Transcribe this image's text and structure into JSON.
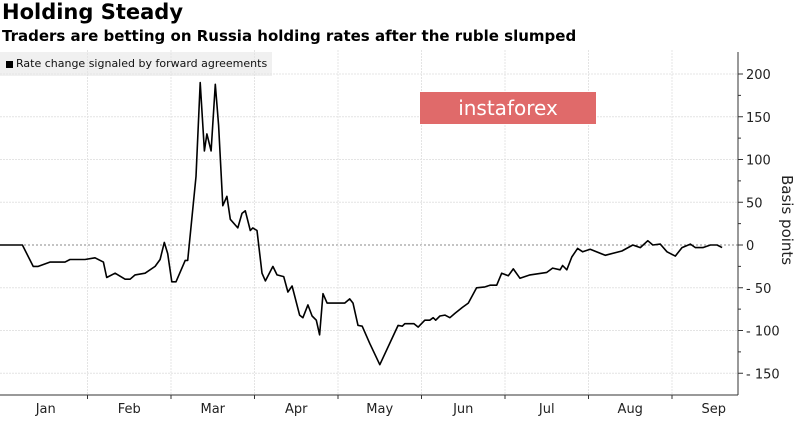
{
  "chart_data": {
    "type": "line",
    "title": "Holding Steady",
    "subtitle": "Traders are betting on Russia holding rates after the ruble slumped",
    "legend": [
      "Rate change signaled by forward agreements"
    ],
    "legend_placement": "top-left",
    "ylabel": "Basis points",
    "ylim": [
      -170,
      225
    ],
    "yticks": [
      200,
      150,
      100,
      50,
      0,
      -50,
      -100,
      -150
    ],
    "xticks": [
      "Jan",
      "Feb",
      "Mar",
      "Apr",
      "May",
      "Jun",
      "Jul",
      "Aug",
      "Sep"
    ],
    "visible_xticks": [
      "Jan",
      "Feb",
      "Mar",
      "Apr",
      "Jul",
      "Aug",
      "Sep"
    ],
    "x_unit": "months since Jan 1",
    "grid": true,
    "color": "#000000",
    "series": [
      {
        "name": "Rate change signaled by forward agreements",
        "x": [
          -0.05,
          0.22,
          0.35,
          0.41,
          0.55,
          0.73,
          0.79,
          0.97,
          1.09,
          1.19,
          1.23,
          1.33,
          1.45,
          1.51,
          1.57,
          1.69,
          1.81,
          1.87,
          1.92,
          1.96,
          2.01,
          2.06,
          2.17,
          2.2,
          2.3,
          2.35,
          2.4,
          2.43,
          2.48,
          2.53,
          2.57,
          2.62,
          2.67,
          2.71,
          2.8,
          2.85,
          2.89,
          2.95,
          2.98,
          3.03,
          3.09,
          3.13,
          3.22,
          3.27,
          3.35,
          3.4,
          3.45,
          3.54,
          3.58,
          3.64,
          3.69,
          3.74,
          3.78,
          3.82,
          3.87,
          4.08,
          4.14,
          4.18,
          4.24,
          4.29,
          4.38,
          4.5,
          4.72,
          4.77,
          4.8,
          4.91,
          4.96,
          5.04,
          5.1,
          5.14,
          5.17,
          5.22,
          5.28,
          5.34,
          5.4,
          5.49,
          5.56,
          5.66,
          5.76,
          5.82,
          5.9,
          5.96,
          6.04,
          6.1,
          6.18,
          6.3,
          6.5,
          6.57,
          6.66,
          6.69,
          6.74,
          6.8,
          6.87,
          6.93,
          7.02,
          7.2,
          7.4,
          7.53,
          7.62,
          7.71,
          7.77,
          7.86,
          7.94,
          8.04,
          8.12,
          8.22,
          8.28,
          8.37,
          8.46,
          8.54,
          8.6
        ],
        "y": [
          0,
          0,
          -25,
          -25,
          -20,
          -20,
          -17,
          -17,
          -15,
          -20,
          -38,
          -33,
          -40,
          -40,
          -35,
          -33,
          -25,
          -17,
          3,
          -10,
          -43,
          -43,
          -18,
          -18,
          80,
          190,
          110,
          130,
          110,
          188,
          140,
          46,
          57,
          30,
          20,
          37,
          40,
          17,
          20,
          17,
          -33,
          -42,
          -25,
          -35,
          -37,
          -55,
          -48,
          -82,
          -85,
          -70,
          -83,
          -88,
          -105,
          -57,
          -68,
          -68,
          -63,
          -68,
          -94,
          -95,
          -115,
          -140,
          -94,
          -95,
          -92,
          -92,
          -96,
          -88,
          -88,
          -85,
          -88,
          -83,
          -82,
          -85,
          -80,
          -73,
          -68,
          -50,
          -49,
          -47,
          -47,
          -33,
          -36,
          -28,
          -39,
          -35,
          -32,
          -27,
          -29,
          -24,
          -29,
          -14,
          -4,
          -8,
          -5,
          -12,
          -7,
          0,
          -3,
          5,
          0,
          1,
          -8,
          -13,
          -3,
          1,
          -3,
          -3,
          0,
          0,
          -3
        ]
      }
    ]
  },
  "watermark": "instaforex"
}
